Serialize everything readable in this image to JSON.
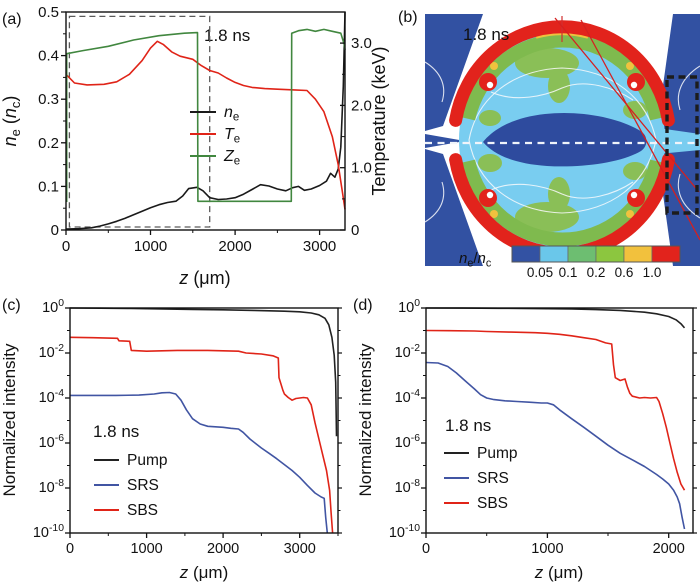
{
  "figure": {
    "background": "#ffffff"
  },
  "palette": {
    "black": "#1a1a1a",
    "red": "#e02418",
    "green": "#41873f",
    "blue": "#4155a3"
  },
  "chart_data": [
    {
      "panel": "a",
      "type": "line",
      "tag": "(a)",
      "annotations": {
        "time_label": "1.8 ns",
        "dashed_box": {
          "x0": 40,
          "x1": 1700,
          "y0": 0.007,
          "y1": 0.49
        }
      },
      "x_axis": {
        "min": 0,
        "max": 3300,
        "major_ticks": [
          0,
          1000,
          2000,
          3000
        ],
        "minor_step": 500,
        "title": [
          {
            "t": "z",
            "i": 1
          },
          {
            "t": " (μm)"
          }
        ]
      },
      "y_axis": {
        "min": 0,
        "max": 0.5,
        "major": [
          [
            0,
            "0"
          ],
          [
            0.1,
            "0.1"
          ],
          [
            0.2,
            "0.2"
          ],
          [
            0.3,
            "0.3"
          ],
          [
            0.4,
            "0.4"
          ],
          [
            0.5,
            "0.5"
          ]
        ],
        "minor_step": 0.05,
        "title": [
          {
            "t": "n",
            "i": 1
          },
          {
            "t": "e",
            "sub": 1
          },
          {
            "t": " ("
          },
          {
            "t": "n",
            "i": 1
          },
          {
            "t": "c",
            "sub": 1
          },
          {
            "t": ")"
          }
        ]
      },
      "y2_axis": {
        "min": 0,
        "max": 3.5,
        "major": [
          [
            0,
            "0"
          ],
          [
            1,
            "1.0"
          ],
          [
            2,
            "2.0"
          ],
          [
            3,
            "3.0"
          ]
        ],
        "minor_step": 0.5,
        "title": [
          {
            "t": "Temperature (keV)"
          }
        ]
      },
      "legend": [
        {
          "series": "ne",
          "label": [
            {
              "t": "n",
              "i": 1
            },
            {
              "t": "e",
              "sub": 1
            }
          ]
        },
        {
          "series": "te",
          "label": [
            {
              "t": "T",
              "i": 1
            },
            {
              "t": "e",
              "sub": 1
            }
          ]
        },
        {
          "series": "ze",
          "label": [
            {
              "t": "Z",
              "i": 1
            },
            {
              "t": "e",
              "sub": 1
            }
          ]
        }
      ],
      "series": [
        {
          "key": "ne",
          "name": "n_e",
          "axis": "y",
          "color": "#1a1a1a",
          "x": [
            0,
            150,
            300,
            400,
            500,
            600,
            700,
            800,
            900,
            1000,
            1100,
            1200,
            1300,
            1380,
            1450,
            1550,
            1620,
            1700,
            1800,
            1900,
            2000,
            2100,
            2200,
            2300,
            2400,
            2500,
            2600,
            2680,
            2750,
            2820,
            2900,
            3000,
            3080,
            3130,
            3180,
            3220,
            3250,
            3280,
            3300
          ],
          "y": [
            0.002,
            0.003,
            0.005,
            0.009,
            0.014,
            0.02,
            0.027,
            0.035,
            0.043,
            0.051,
            0.058,
            0.063,
            0.066,
            0.078,
            0.095,
            0.098,
            0.09,
            0.074,
            0.07,
            0.071,
            0.074,
            0.082,
            0.093,
            0.104,
            0.101,
            0.094,
            0.09,
            0.097,
            0.1,
            0.091,
            0.094,
            0.102,
            0.112,
            0.13,
            0.121,
            0.14,
            0.19,
            0.33,
            0.5
          ]
        },
        {
          "key": "te",
          "name": "T_e",
          "axis": "y2",
          "color": "#e02418",
          "x": [
            0,
            100,
            250,
            450,
            600,
            750,
            900,
            1000,
            1080,
            1150,
            1250,
            1350,
            1500,
            1600,
            1700,
            1800,
            1900,
            2000,
            2100,
            2200,
            2350,
            2500,
            2700,
            2850,
            2950,
            3050,
            3150,
            3220,
            3270,
            3300
          ],
          "y": [
            2.5,
            2.36,
            2.33,
            2.34,
            2.38,
            2.5,
            2.72,
            2.92,
            3.03,
            2.98,
            2.86,
            2.79,
            2.74,
            2.64,
            2.56,
            2.52,
            2.44,
            2.37,
            2.32,
            2.29,
            2.27,
            2.26,
            2.25,
            2.24,
            2.1,
            1.9,
            1.5,
            1.05,
            0.6,
            0.33
          ]
        },
        {
          "key": "ze",
          "name": "Z_e",
          "axis": "y2",
          "color": "#41873f",
          "x": [
            8,
            8,
            200,
            500,
            800,
            1100,
            1400,
            1555,
            1560,
            2665,
            2670,
            2750,
            2850,
            2950,
            3050,
            3150,
            3250,
            3290,
            3300
          ],
          "y": [
            0.45,
            2.83,
            2.88,
            2.95,
            3.05,
            3.12,
            3.16,
            3.17,
            0.46,
            0.46,
            3.16,
            3.2,
            3.22,
            3.19,
            3.22,
            3.19,
            3.16,
            2.98,
            2.89
          ]
        }
      ]
    },
    {
      "panel": "b",
      "type": "heatmap",
      "tag": "(b)",
      "annotations": {
        "time_label": "1.8 ns"
      },
      "colorbar": {
        "label": [
          {
            "t": "n",
            "i": 1
          },
          {
            "t": "e",
            "sub": 1
          },
          {
            "t": "/"
          },
          {
            "t": "n",
            "i": 1
          },
          {
            "t": "c",
            "sub": 1
          }
        ],
        "colors": [
          "#3352a3",
          "#6ac7ea",
          "#6dbe71",
          "#8cc63f",
          "#f2c13d",
          "#e2231c"
        ],
        "tick_labels": [
          "0.05",
          "0.1",
          "0.2",
          "0.6",
          "1.0"
        ]
      }
    },
    {
      "panel": "c",
      "type": "line",
      "tag": "(c)",
      "annotations": {
        "time_label": "1.8 ns"
      },
      "x_axis": {
        "min": 0,
        "max": 3500,
        "major_ticks": [
          0,
          1000,
          2000,
          3000
        ],
        "minor_step": 500,
        "title": [
          {
            "t": "z",
            "i": 1
          },
          {
            "t": " (μm)"
          }
        ]
      },
      "y_axis": {
        "log": true,
        "exp_min": -10,
        "exp_max": 0,
        "major_exps": [
          0,
          -2,
          -4,
          -6,
          -8,
          -10
        ],
        "title": [
          {
            "t": "Normalized intensity"
          }
        ]
      },
      "legend": [
        {
          "series": "pump",
          "label": [
            {
              "t": "Pump"
            }
          ]
        },
        {
          "series": "srs",
          "label": [
            {
              "t": "SRS"
            }
          ]
        },
        {
          "series": "sbs",
          "label": [
            {
              "t": "SBS"
            }
          ]
        }
      ],
      "series": [
        {
          "key": "pump",
          "name": "Pump",
          "axis": "y",
          "color": "#222222",
          "x": [
            0,
            400,
            800,
            1200,
            1600,
            2000,
            2400,
            2800,
            3000,
            3150,
            3250,
            3330,
            3380,
            3420,
            3450,
            3470,
            3480
          ],
          "y": [
            1.0,
            0.98,
            0.95,
            0.9,
            0.87,
            0.83,
            0.78,
            0.72,
            0.68,
            0.6,
            0.5,
            0.35,
            0.18,
            0.05,
            0.008,
            0.0005,
            2e-06
          ]
        },
        {
          "key": "srs",
          "name": "SRS",
          "axis": "y",
          "color": "#4155a3",
          "x": [
            0,
            300,
            600,
            900,
            1100,
            1200,
            1300,
            1380,
            1450,
            1520,
            1600,
            1700,
            1800,
            2000,
            2100,
            2200,
            2260,
            2350,
            2500,
            2600,
            2700,
            2800,
            2900,
            3000,
            3100,
            3200,
            3280,
            3320,
            3340,
            3360
          ],
          "y": [
            0.00013,
            0.00013,
            0.00013,
            0.000135,
            0.00015,
            0.00017,
            0.000175,
            0.00015,
            8e-05,
            3e-05,
            1.2e-05,
            7e-06,
            5.5e-06,
            5e-06,
            4.5e-06,
            4.2e-06,
            3e-06,
            1.5e-06,
            6e-07,
            3.5e-07,
            2e-07,
            1.1e-07,
            6e-08,
            3e-08,
            1.3e-08,
            6e-09,
            4e-09,
            3.5e-09,
            5e-10,
            1e-10
          ]
        },
        {
          "key": "sbs",
          "name": "SBS",
          "axis": "y",
          "color": "#e02418",
          "x": [
            0,
            300,
            620,
            640,
            780,
            800,
            1000,
            1400,
            1800,
            2200,
            2300,
            2500,
            2650,
            2720,
            2730,
            2780,
            2800,
            2850,
            2900,
            2950,
            3050,
            3100,
            3150,
            3200,
            3250,
            3300,
            3350,
            3390,
            3410,
            3430
          ],
          "y": [
            0.05,
            0.048,
            0.045,
            0.035,
            0.033,
            0.013,
            0.012,
            0.013,
            0.013,
            0.012,
            0.01,
            0.009,
            0.0075,
            0.006,
            0.0008,
            0.00022,
            0.00015,
            0.000105,
            8e-05,
            9.5e-05,
            0.000105,
            0.0001,
            5e-05,
            8e-06,
            1.5e-06,
            3e-07,
            6e-08,
            8e-09,
            8e-10,
            1e-10
          ]
        }
      ]
    },
    {
      "panel": "d",
      "type": "line",
      "tag": "(d)",
      "annotations": {
        "time_label": "1.8 ns"
      },
      "x_axis": {
        "min": 0,
        "max": 2200,
        "major_ticks": [
          0,
          1000,
          2000
        ],
        "minor_step": 500,
        "title": [
          {
            "t": "z",
            "i": 1
          },
          {
            "t": " (μm)"
          }
        ]
      },
      "y_axis": {
        "log": true,
        "exp_min": -10,
        "exp_max": 0,
        "major_exps": [
          0,
          -2,
          -4,
          -6,
          -8,
          -10
        ],
        "title": [
          {
            "t": "Normalized intensity"
          }
        ]
      },
      "legend": [
        {
          "series": "pump",
          "label": [
            {
              "t": "Pump"
            }
          ]
        },
        {
          "series": "srs",
          "label": [
            {
              "t": "SRS"
            }
          ]
        },
        {
          "series": "sbs",
          "label": [
            {
              "t": "SBS"
            }
          ]
        }
      ],
      "series": [
        {
          "key": "pump",
          "name": "Pump",
          "axis": "y",
          "color": "#222222",
          "x": [
            0,
            300,
            600,
            900,
            1200,
            1400,
            1600,
            1800,
            1900,
            2000,
            2060,
            2100,
            2130
          ],
          "y": [
            1.0,
            0.99,
            0.97,
            0.94,
            0.9,
            0.85,
            0.78,
            0.65,
            0.55,
            0.42,
            0.3,
            0.2,
            0.13
          ]
        },
        {
          "key": "srs",
          "name": "SRS",
          "axis": "y",
          "color": "#4155a3",
          "x": [
            0,
            100,
            180,
            250,
            320,
            400,
            450,
            500,
            560,
            650,
            750,
            850,
            950,
            1000,
            1050,
            1100,
            1200,
            1300,
            1400,
            1500,
            1600,
            1700,
            1800,
            1900,
            1950,
            2000,
            2040,
            2070,
            2090,
            2110,
            2130
          ],
          "y": [
            0.0038,
            0.0036,
            0.0025,
            0.0013,
            0.0006,
            0.00025,
            0.00014,
            0.0001,
            8.5e-05,
            7.5e-05,
            7e-05,
            6.5e-05,
            6e-05,
            6e-05,
            5e-05,
            3e-05,
            1.2e-05,
            5e-06,
            2e-06,
            8e-07,
            3.5e-07,
            1.8e-07,
            9e-08,
            4e-08,
            2.5e-08,
            1.5e-08,
            8e-09,
            4e-09,
            2e-09,
            5e-10,
            1.5e-10
          ]
        },
        {
          "key": "sbs",
          "name": "SBS",
          "axis": "y",
          "color": "#e02418",
          "x": [
            0,
            200,
            400,
            500,
            700,
            900,
            1000,
            1100,
            1200,
            1300,
            1400,
            1480,
            1530,
            1545,
            1560,
            1600,
            1640,
            1660,
            1680,
            1700,
            1760,
            1800,
            1850,
            1900,
            1920,
            1950,
            1980,
            2010,
            2040,
            2070,
            2100,
            2130
          ],
          "y": [
            0.1,
            0.098,
            0.095,
            0.09,
            0.085,
            0.08,
            0.075,
            0.068,
            0.058,
            0.048,
            0.04,
            0.028,
            0.025,
            0.003,
            0.0008,
            0.0006,
            0.0007,
            0.0003,
            0.00016,
            0.00012,
            0.0001,
            0.000105,
            0.0001,
            0.000105,
            7e-05,
            2e-05,
            5e-06,
            1e-06,
            2e-07,
            5e-08,
            1.5e-08,
            8e-09
          ]
        }
      ]
    }
  ]
}
